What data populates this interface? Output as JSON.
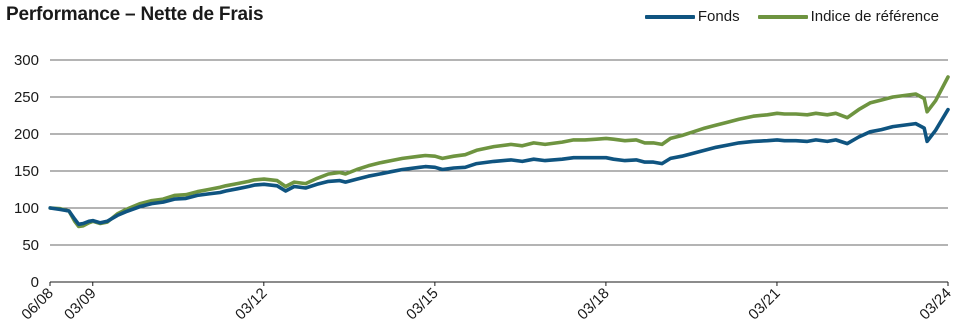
{
  "chart_data": {
    "type": "line",
    "title": "Performance – Nette de Frais",
    "xlabel": "",
    "ylabel": "",
    "ylim": [
      0,
      300
    ],
    "yticks": [
      0,
      50,
      100,
      150,
      200,
      250,
      300
    ],
    "x_tick_labels": [
      "06/08",
      "03/09",
      "03/12",
      "03/15",
      "03/18",
      "03/21",
      "03/24"
    ],
    "x_tick_dates": [
      2008.417,
      2009.167,
      2012.167,
      2015.167,
      2018.167,
      2021.167,
      2024.167
    ],
    "xlim": [
      2008.417,
      2024.167
    ],
    "grid": "horizontal",
    "legend_position": "top-right",
    "series": [
      {
        "name": "Fonds",
        "color": "#0f5480",
        "points": [
          [
            2008.42,
            100
          ],
          [
            2008.6,
            98
          ],
          [
            2008.75,
            96
          ],
          [
            2008.85,
            85
          ],
          [
            2008.92,
            78
          ],
          [
            2009.0,
            79
          ],
          [
            2009.1,
            82
          ],
          [
            2009.17,
            83
          ],
          [
            2009.3,
            80
          ],
          [
            2009.42,
            82
          ],
          [
            2009.6,
            90
          ],
          [
            2009.75,
            95
          ],
          [
            2010.0,
            102
          ],
          [
            2010.2,
            106
          ],
          [
            2010.4,
            108
          ],
          [
            2010.6,
            112
          ],
          [
            2010.8,
            113
          ],
          [
            2011.0,
            117
          ],
          [
            2011.2,
            119
          ],
          [
            2011.4,
            121
          ],
          [
            2011.5,
            123
          ],
          [
            2011.7,
            126
          ],
          [
            2011.9,
            129
          ],
          [
            2012.0,
            131
          ],
          [
            2012.17,
            132
          ],
          [
            2012.4,
            130
          ],
          [
            2012.55,
            123
          ],
          [
            2012.7,
            129
          ],
          [
            2012.9,
            127
          ],
          [
            2013.1,
            132
          ],
          [
            2013.3,
            136
          ],
          [
            2013.5,
            137
          ],
          [
            2013.6,
            135
          ],
          [
            2013.8,
            139
          ],
          [
            2014.0,
            143
          ],
          [
            2014.2,
            146
          ],
          [
            2014.4,
            149
          ],
          [
            2014.6,
            152
          ],
          [
            2014.9,
            155
          ],
          [
            2015.0,
            156
          ],
          [
            2015.17,
            155
          ],
          [
            2015.3,
            152
          ],
          [
            2015.5,
            154
          ],
          [
            2015.7,
            155
          ],
          [
            2015.9,
            160
          ],
          [
            2016.2,
            163
          ],
          [
            2016.5,
            165
          ],
          [
            2016.7,
            163
          ],
          [
            2016.9,
            166
          ],
          [
            2017.1,
            164
          ],
          [
            2017.4,
            166
          ],
          [
            2017.6,
            168
          ],
          [
            2017.8,
            168
          ],
          [
            2018.0,
            168
          ],
          [
            2018.17,
            168
          ],
          [
            2018.3,
            166
          ],
          [
            2018.5,
            164
          ],
          [
            2018.7,
            165
          ],
          [
            2018.85,
            162
          ],
          [
            2019.0,
            162
          ],
          [
            2019.15,
            160
          ],
          [
            2019.3,
            167
          ],
          [
            2019.5,
            170
          ],
          [
            2019.7,
            174
          ],
          [
            2019.9,
            178
          ],
          [
            2020.1,
            182
          ],
          [
            2020.3,
            185
          ],
          [
            2020.5,
            188
          ],
          [
            2020.75,
            190
          ],
          [
            2021.0,
            191
          ],
          [
            2021.17,
            192
          ],
          [
            2021.3,
            191
          ],
          [
            2021.5,
            191
          ],
          [
            2021.7,
            190
          ],
          [
            2021.85,
            192
          ],
          [
            2022.05,
            190
          ],
          [
            2022.2,
            192
          ],
          [
            2022.4,
            187
          ],
          [
            2022.6,
            196
          ],
          [
            2022.8,
            203
          ],
          [
            2023.0,
            206
          ],
          [
            2023.2,
            210
          ],
          [
            2023.4,
            212
          ],
          [
            2023.6,
            214
          ],
          [
            2023.75,
            208
          ],
          [
            2023.8,
            190
          ],
          [
            2023.95,
            205
          ],
          [
            2024.167,
            233
          ]
        ]
      },
      {
        "name": "Indice de référence",
        "color": "#6e9440",
        "points": [
          [
            2008.42,
            100
          ],
          [
            2008.6,
            99
          ],
          [
            2008.75,
            96
          ],
          [
            2008.85,
            82
          ],
          [
            2008.92,
            75
          ],
          [
            2009.0,
            76
          ],
          [
            2009.1,
            80
          ],
          [
            2009.17,
            82
          ],
          [
            2009.3,
            79
          ],
          [
            2009.42,
            81
          ],
          [
            2009.6,
            92
          ],
          [
            2009.75,
            98
          ],
          [
            2010.0,
            106
          ],
          [
            2010.2,
            110
          ],
          [
            2010.4,
            112
          ],
          [
            2010.6,
            117
          ],
          [
            2010.8,
            118
          ],
          [
            2011.0,
            122
          ],
          [
            2011.2,
            125
          ],
          [
            2011.4,
            128
          ],
          [
            2011.5,
            130
          ],
          [
            2011.7,
            133
          ],
          [
            2011.9,
            136
          ],
          [
            2012.0,
            138
          ],
          [
            2012.17,
            139
          ],
          [
            2012.4,
            137
          ],
          [
            2012.55,
            129
          ],
          [
            2012.7,
            135
          ],
          [
            2012.9,
            133
          ],
          [
            2013.1,
            140
          ],
          [
            2013.3,
            146
          ],
          [
            2013.5,
            148
          ],
          [
            2013.6,
            146
          ],
          [
            2013.8,
            152
          ],
          [
            2014.0,
            157
          ],
          [
            2014.2,
            161
          ],
          [
            2014.4,
            164
          ],
          [
            2014.6,
            167
          ],
          [
            2014.9,
            170
          ],
          [
            2015.0,
            171
          ],
          [
            2015.17,
            170
          ],
          [
            2015.3,
            167
          ],
          [
            2015.5,
            170
          ],
          [
            2015.7,
            172
          ],
          [
            2015.9,
            178
          ],
          [
            2016.2,
            183
          ],
          [
            2016.5,
            186
          ],
          [
            2016.7,
            184
          ],
          [
            2016.9,
            188
          ],
          [
            2017.1,
            186
          ],
          [
            2017.4,
            189
          ],
          [
            2017.6,
            192
          ],
          [
            2017.8,
            192
          ],
          [
            2018.0,
            193
          ],
          [
            2018.17,
            194
          ],
          [
            2018.3,
            193
          ],
          [
            2018.5,
            191
          ],
          [
            2018.7,
            192
          ],
          [
            2018.85,
            188
          ],
          [
            2019.0,
            188
          ],
          [
            2019.15,
            186
          ],
          [
            2019.3,
            194
          ],
          [
            2019.5,
            198
          ],
          [
            2019.7,
            203
          ],
          [
            2019.9,
            208
          ],
          [
            2020.1,
            212
          ],
          [
            2020.3,
            216
          ],
          [
            2020.5,
            220
          ],
          [
            2020.75,
            224
          ],
          [
            2021.0,
            226
          ],
          [
            2021.17,
            228
          ],
          [
            2021.3,
            227
          ],
          [
            2021.5,
            227
          ],
          [
            2021.7,
            226
          ],
          [
            2021.85,
            228
          ],
          [
            2022.05,
            226
          ],
          [
            2022.2,
            228
          ],
          [
            2022.4,
            222
          ],
          [
            2022.6,
            233
          ],
          [
            2022.8,
            242
          ],
          [
            2023.0,
            246
          ],
          [
            2023.2,
            250
          ],
          [
            2023.4,
            252
          ],
          [
            2023.6,
            254
          ],
          [
            2023.75,
            248
          ],
          [
            2023.8,
            230
          ],
          [
            2023.95,
            245
          ],
          [
            2024.167,
            277
          ]
        ]
      }
    ]
  }
}
